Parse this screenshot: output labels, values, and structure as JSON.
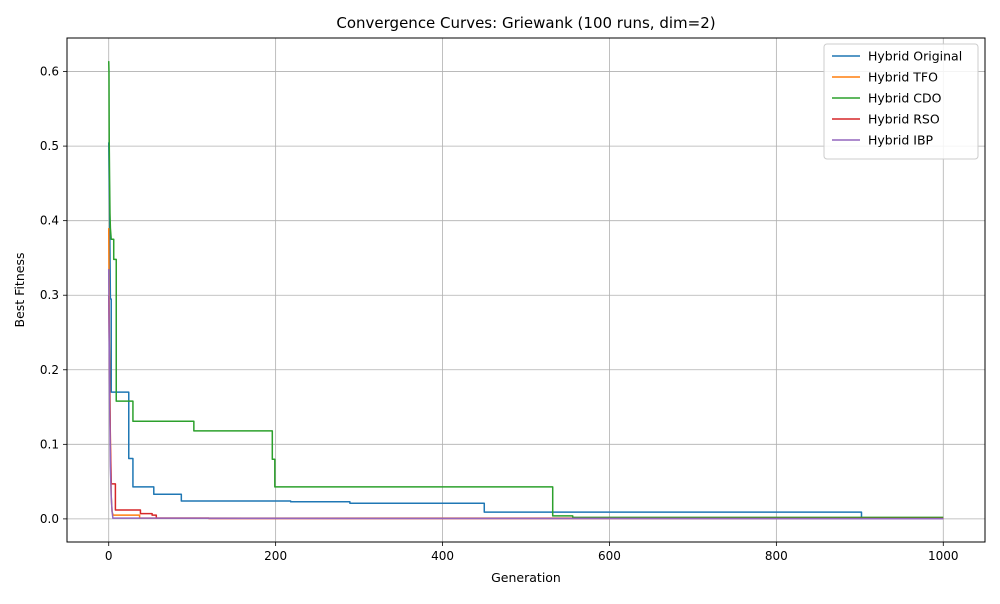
{
  "chart_data": {
    "type": "line",
    "title": "Convergence Curves: Griewank (100 runs, dim=2)",
    "xlabel": "Generation",
    "ylabel": "Best Fitness",
    "xlim": [
      -50,
      1050
    ],
    "ylim": [
      -0.031,
      0.645
    ],
    "xticks": [
      0,
      200,
      400,
      600,
      800,
      1000
    ],
    "xtick_labels": [
      "0",
      "200",
      "400",
      "600",
      "800",
      "1000"
    ],
    "yticks": [
      0.0,
      0.1,
      0.2,
      0.3,
      0.4,
      0.5,
      0.6
    ],
    "ytick_labels": [
      "0.0",
      "0.1",
      "0.2",
      "0.3",
      "0.4",
      "0.5",
      "0.6"
    ],
    "grid": true,
    "legend_position": "upper right",
    "series": [
      {
        "name": "Hybrid Original",
        "color": "#1f77b4",
        "x": [
          0,
          1,
          2,
          3,
          3,
          24,
          24,
          29,
          29,
          31,
          31,
          54,
          54,
          87,
          87,
          218,
          218,
          289,
          289,
          450,
          450,
          902,
          902,
          1000
        ],
        "y": [
          0.505,
          0.42,
          0.295,
          0.295,
          0.17,
          0.17,
          0.081,
          0.081,
          0.043,
          0.043,
          0.043,
          0.043,
          0.033,
          0.033,
          0.024,
          0.024,
          0.023,
          0.023,
          0.021,
          0.021,
          0.009,
          0.009,
          0.001,
          0.001
        ]
      },
      {
        "name": "Hybrid TFO",
        "color": "#ff7f0e",
        "x": [
          0,
          1,
          2,
          3,
          4,
          5,
          5,
          37,
          37,
          1000
        ],
        "y": [
          0.39,
          0.22,
          0.1,
          0.03,
          0.01,
          0.006,
          0.005,
          0.005,
          0.001,
          0.001
        ]
      },
      {
        "name": "Hybrid CDO",
        "color": "#2ca02c",
        "x": [
          0,
          0.3,
          0.6,
          1,
          1.5,
          2,
          3,
          3,
          6,
          6,
          9,
          9,
          11,
          11,
          26,
          26,
          29,
          29,
          102,
          102,
          196,
          196,
          199,
          199,
          532,
          532,
          556,
          556,
          1000
        ],
        "y": [
          0.614,
          0.6,
          0.505,
          0.46,
          0.41,
          0.39,
          0.375,
          0.375,
          0.375,
          0.348,
          0.348,
          0.158,
          0.158,
          0.158,
          0.158,
          0.158,
          0.158,
          0.131,
          0.131,
          0.118,
          0.118,
          0.08,
          0.08,
          0.043,
          0.043,
          0.004,
          0.004,
          0.002,
          0.002
        ]
      },
      {
        "name": "Hybrid RSO",
        "color": "#d62728",
        "x": [
          0,
          1,
          2,
          3,
          3,
          4,
          4,
          8,
          8,
          38,
          38,
          52,
          52,
          57,
          57,
          120,
          120,
          1000
        ],
        "y": [
          0.3,
          0.2,
          0.1,
          0.05,
          0.047,
          0.047,
          0.047,
          0.047,
          0.012,
          0.012,
          0.007,
          0.007,
          0.005,
          0.005,
          0.001,
          0.001,
          0.0005,
          0.0005
        ]
      },
      {
        "name": "Hybrid IBP",
        "color": "#9467bd",
        "x": [
          0,
          0.5,
          1,
          1.5,
          2,
          3,
          4,
          5,
          1000
        ],
        "y": [
          0.335,
          0.25,
          0.17,
          0.12,
          0.07,
          0.03,
          0.01,
          0.001,
          0.0002
        ]
      }
    ]
  }
}
